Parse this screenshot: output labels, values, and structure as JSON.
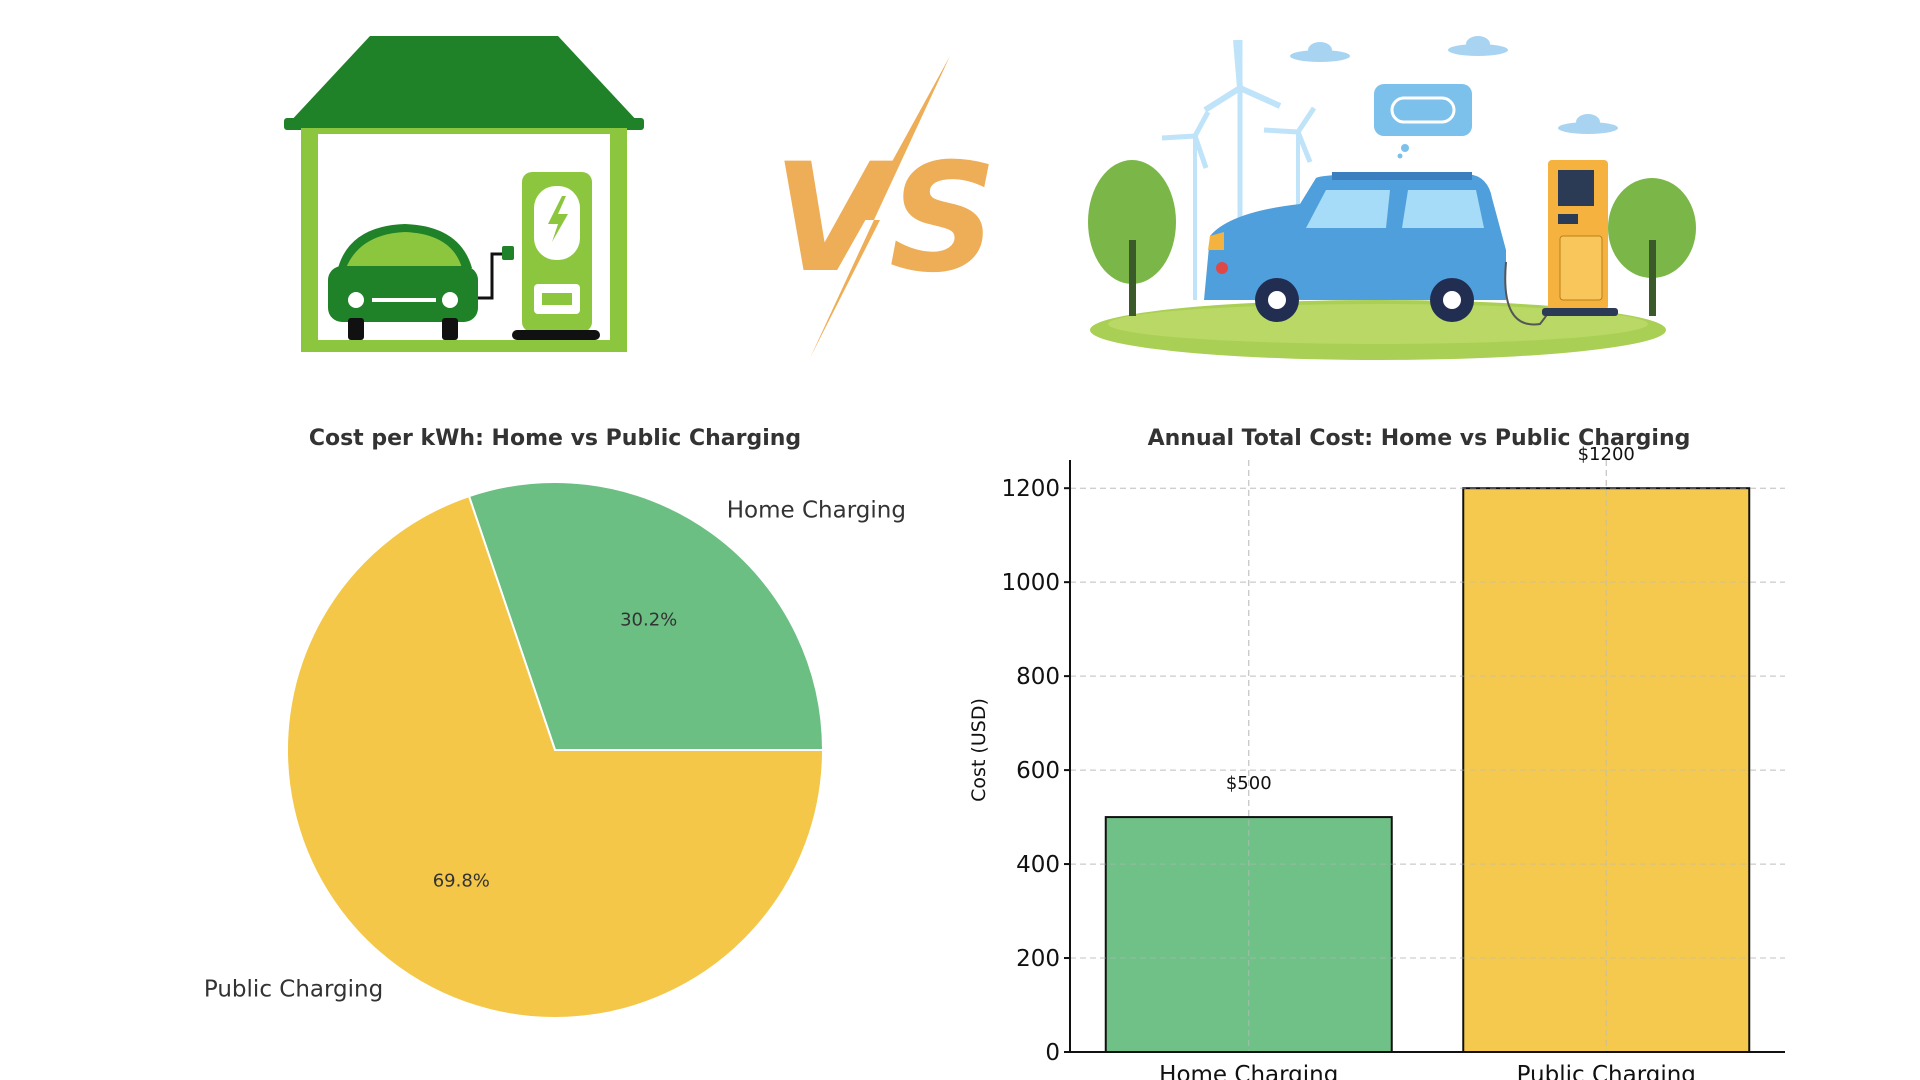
{
  "illustration": {
    "vs_text": "VS"
  },
  "colors": {
    "home": "#6bbf83",
    "public": "#f4c748",
    "title_text": "#333333",
    "axis": "#000000",
    "grid": "#cccccc",
    "house_roof": "#1f8128",
    "house_wall": "#8cc63f",
    "vs_orange": "#eead57",
    "car_blue": "#4f9fdc"
  },
  "chart_data": [
    {
      "type": "pie",
      "title": "Cost per kWh: Home vs Public Charging",
      "slices": [
        {
          "label": "Home Charging",
          "pct": 30.2,
          "pct_label": "30.2%",
          "color": "#6bbf83"
        },
        {
          "label": "Public Charging",
          "pct": 69.8,
          "pct_label": "69.8%",
          "color": "#f4c748"
        }
      ],
      "startangle": 0,
      "direction": "counterclockwise"
    },
    {
      "type": "bar",
      "title": "Annual Total Cost: Home vs Public Charging",
      "categories": [
        "Home Charging",
        "Public Charging"
      ],
      "values": [
        500,
        1200
      ],
      "value_labels": [
        "$500",
        "$1200"
      ],
      "colors": [
        "#6bbf83",
        "#f4c748"
      ],
      "ylabel": "Cost (USD)",
      "xlabel": "",
      "ylim": [
        0,
        1260
      ],
      "yticks": [
        0,
        200,
        400,
        600,
        800,
        1000,
        1200
      ],
      "grid": true
    }
  ]
}
